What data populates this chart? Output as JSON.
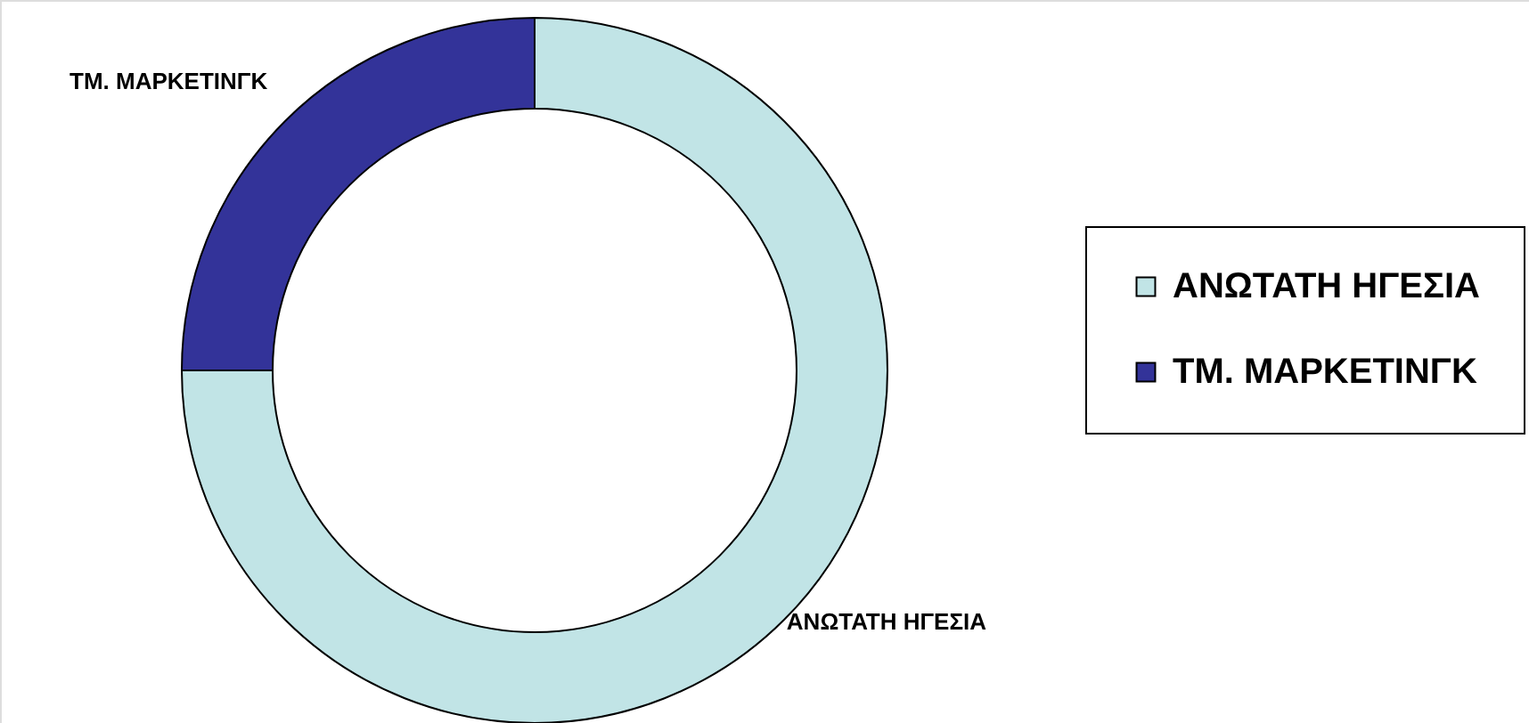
{
  "chart_data": {
    "type": "donut",
    "categories": [
      "ΑΝΩΤΑΤΗ ΗΓΕΣΙΑ",
      "ΤΜ. ΜΑΡΚΕΤΙΝΓΚ"
    ],
    "values": [
      75,
      25
    ],
    "colors": [
      "#c1e4e6",
      "#333399"
    ],
    "legend": "right"
  }
}
